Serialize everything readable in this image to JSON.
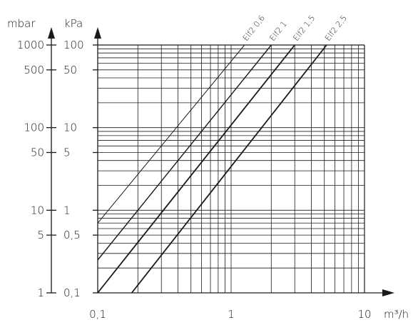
{
  "chart_data": {
    "type": "line",
    "x_axis": {
      "scale": "log",
      "min": 0.1,
      "max": 10,
      "unit_label": "m³/h",
      "tick_labels": [
        "0,1",
        "1",
        "10"
      ]
    },
    "y_axis_kpa": {
      "scale": "log",
      "min": 0.1,
      "max": 100,
      "unit_label": "kPa",
      "tick_labels": [
        "100",
        "50",
        "10",
        "5",
        "1",
        "0,5",
        "0,1"
      ]
    },
    "y_axis_mbar": {
      "scale": "log",
      "min": 1,
      "max": 1000,
      "unit_label": "mbar",
      "tick_labels": [
        "1000",
        "500",
        "100",
        "50",
        "10",
        "5",
        "1"
      ]
    },
    "grid": true,
    "series": [
      {
        "name": "Elf2 0,6",
        "x": [
          0.1,
          1.26
        ],
        "y": [
          0.7,
          100
        ]
      },
      {
        "name": "Elf2 1",
        "x": [
          0.1,
          2.0
        ],
        "y": [
          0.25,
          100
        ]
      },
      {
        "name": "Elf2 1,5",
        "x": [
          0.1,
          3.0
        ],
        "y": [
          0.1,
          100
        ]
      },
      {
        "name": "Elf2 2,5",
        "x": [
          0.18,
          5.2
        ],
        "y": [
          0.1,
          100
        ]
      }
    ]
  }
}
